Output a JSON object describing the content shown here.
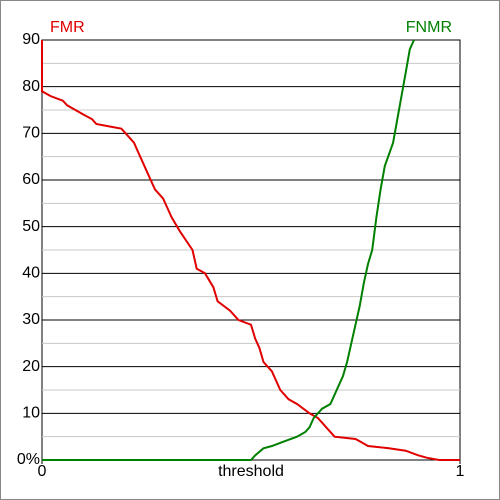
{
  "chart_data": {
    "type": "line",
    "xlabel": "threshold",
    "xlim": [
      0,
      1
    ],
    "xticks": [
      0,
      1
    ],
    "ylim": [
      0,
      90
    ],
    "yticks": [
      {
        "value": 0,
        "label": "0%"
      },
      10,
      20,
      30,
      40,
      50,
      60,
      70,
      80,
      90
    ],
    "minor_yticks": [
      5,
      15,
      25,
      35,
      45,
      55,
      65,
      75,
      85
    ],
    "grid": true,
    "series": [
      {
        "name": "FMR",
        "color": "#e00000",
        "x": [
          0,
          0,
          0.02,
          0.05,
          0.06,
          0.08,
          0.1,
          0.12,
          0.13,
          0.19,
          0.2,
          0.22,
          0.23,
          0.24,
          0.25,
          0.26,
          0.27,
          0.29,
          0.3,
          0.31,
          0.33,
          0.36,
          0.37,
          0.39,
          0.41,
          0.42,
          0.45,
          0.47,
          0.5,
          0.51,
          0.52,
          0.53,
          0.55,
          0.56,
          0.57,
          0.59,
          0.61,
          0.64,
          0.66,
          0.67,
          0.68,
          0.7,
          0.75,
          0.76,
          0.78,
          0.83,
          0.87,
          0.9,
          0.92,
          0.95,
          1
        ],
        "values": [
          90,
          79,
          78,
          77,
          76,
          75,
          74,
          73,
          72,
          71,
          70,
          68,
          66,
          64,
          62,
          60,
          58,
          56,
          54,
          52,
          49,
          45,
          41,
          40,
          37,
          34,
          32,
          30,
          29,
          26,
          24,
          21,
          19,
          17,
          15,
          13,
          12,
          10,
          9,
          8,
          7,
          5,
          4.5,
          4,
          3,
          2.5,
          2,
          1,
          0.5,
          0,
          0
        ]
      },
      {
        "name": "FNMR",
        "color": "#008000",
        "x": [
          0,
          0.5,
          0.51,
          0.53,
          0.55,
          0.58,
          0.61,
          0.63,
          0.64,
          0.65,
          0.67,
          0.69,
          0.7,
          0.71,
          0.72,
          0.73,
          0.74,
          0.75,
          0.76,
          0.77,
          0.78,
          0.79,
          0.8,
          0.81,
          0.82,
          0.84,
          0.85,
          0.86,
          0.87,
          0.88,
          0.89
        ],
        "values": [
          0,
          0,
          1,
          2.5,
          3,
          4,
          5,
          6,
          7,
          9,
          11,
          12,
          14,
          16,
          18,
          21,
          25,
          29,
          33,
          38,
          42,
          45,
          52,
          58,
          63,
          68,
          73,
          78,
          83,
          88,
          90
        ]
      }
    ]
  }
}
